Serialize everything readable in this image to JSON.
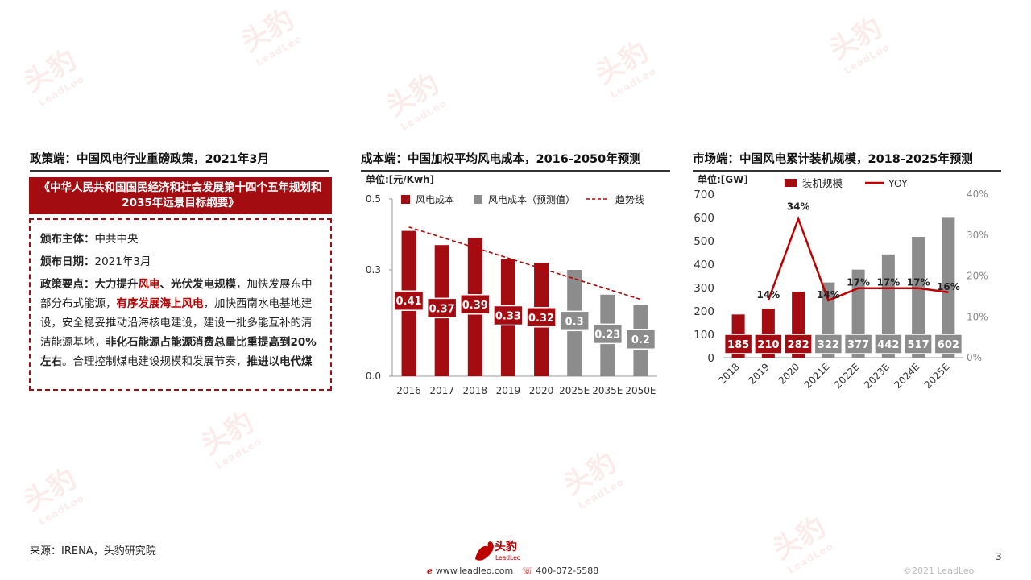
{
  "policy": {
    "title": "政策端：中国风电行业重磅政策，2021年3月",
    "banner": "《中华人民共和国国民经济和社会发展第十四个五年规划和2035年远景目标纲要》",
    "issuer_label": "颁布主体：",
    "issuer": "中共中央",
    "date_label": "颁布日期：",
    "date": "2021年3月",
    "points_label": "政策要点：",
    "seg1": "大力提升",
    "seg2": "风电",
    "seg3": "、光伏发电规模",
    "seg4": "，加快发展东中部分布式能源，",
    "seg5": "有序发展海上风电",
    "seg6": "，加快西南水电基地建设，安全稳妥推动沿海核电建设，建设一批多能互补的清洁能源基地，",
    "seg7": "非化石能源占能源消费总量比重提高到20%左右",
    "seg8": "。合理控制煤电建设规模和发展节奏，",
    "seg9": "推进以电代煤"
  },
  "chart_data": [
    {
      "type": "bar",
      "title": "成本端：中国加权平均风电成本，2016-2050年预测",
      "unit_label": "单位:[元/Kwh]",
      "categories": [
        "2016",
        "2017",
        "2018",
        "2019",
        "2020",
        "2025E",
        "2035E",
        "2050E"
      ],
      "series": [
        {
          "name": "风电成本",
          "values": [
            0.41,
            0.37,
            0.39,
            0.33,
            0.32,
            null,
            null,
            null
          ],
          "color": "#a30d12"
        },
        {
          "name": "风电成本（预测值）",
          "values": [
            null,
            null,
            null,
            null,
            null,
            0.3,
            0.23,
            0.2
          ],
          "color": "#8c8c8c"
        }
      ],
      "trend_name": "趋势线",
      "trend_color": "#c00000",
      "ylim": [
        0,
        0.5
      ],
      "yticks": [
        "0.0",
        "0.3",
        "0.5"
      ],
      "grid": false,
      "legend": "top"
    },
    {
      "type": "bar",
      "title": "市场端：中国风电累计装机规模，2018-2025年预测",
      "unit_label": "单位:[GW]",
      "categories": [
        "2018",
        "2019",
        "2020",
        "2021E",
        "2022E",
        "2023E",
        "2024E",
        "2025E"
      ],
      "series": [
        {
          "name": "装机规模",
          "values": [
            185,
            210,
            282,
            322,
            377,
            442,
            517,
            602
          ]
        },
        {
          "name": "YOY",
          "type": "line",
          "values": [
            null,
            14,
            34,
            14,
            17,
            17,
            17,
            16
          ],
          "labels": [
            "",
            "14%",
            "34%",
            "14%",
            "17%",
            "17%",
            "17%",
            "16%"
          ]
        }
      ],
      "colors": {
        "actual": "#a30d12",
        "forecast": "#8c8c8c",
        "line": "#c00000"
      },
      "ylim": [
        0,
        700
      ],
      "yticks": [
        "0",
        "100",
        "200",
        "300",
        "400",
        "500",
        "600",
        "700"
      ],
      "y2lim": [
        0,
        40
      ],
      "y2ticks": [
        "0%",
        "10%",
        "20%",
        "30%",
        "40%"
      ],
      "grid": false,
      "legend": "top"
    }
  ],
  "footer": {
    "source": "来源：IRENA，头豹研究院",
    "logo_text": "头豹",
    "logo_sub": "LeadLeo",
    "website": "www.leadleo.com",
    "phone": "400-072-5588",
    "page": "3",
    "copyright": "©2021 LeadLeo"
  },
  "colors": {
    "brand_red": "#a30d12",
    "forecast_gray": "#8c8c8c"
  }
}
